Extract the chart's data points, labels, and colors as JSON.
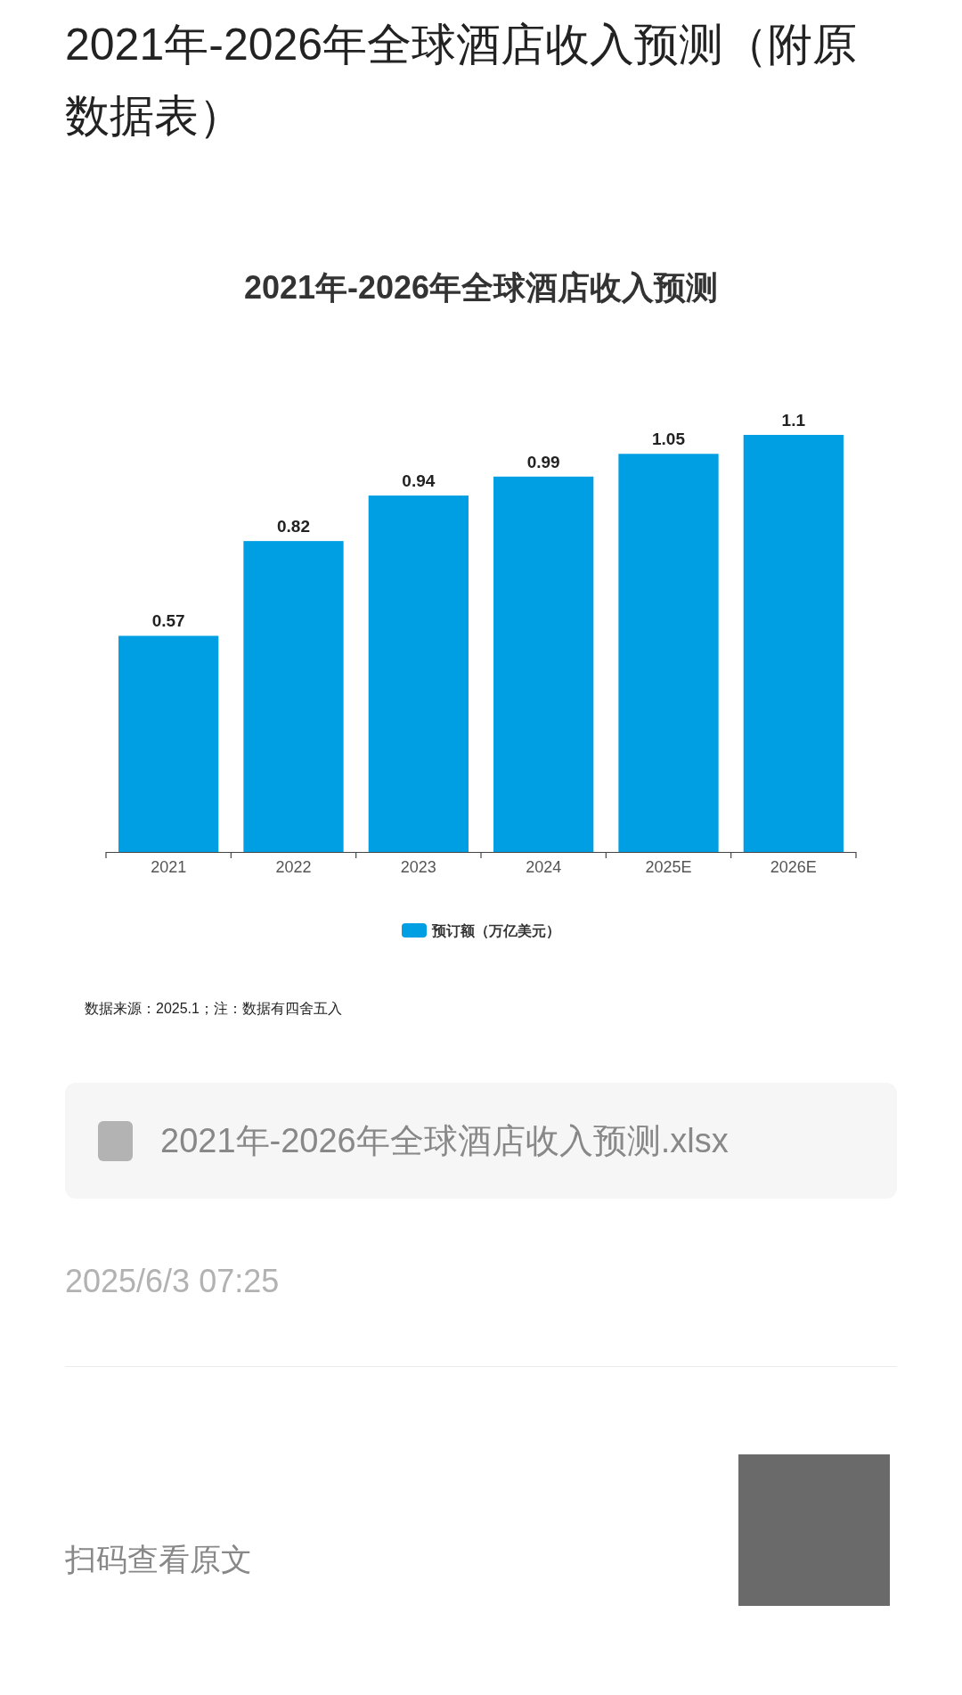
{
  "chart_data": {
    "type": "bar",
    "title": "2021年-2026年全球酒店收入预测（附原数据表）",
    "subtitle": "2021年-2026年全球酒店收入预测",
    "categories": [
      "2021",
      "2022",
      "2023",
      "2024",
      "2025E",
      "2026E"
    ],
    "series": [
      {
        "name": "预订额（万亿美元）",
        "color": "#009ee3",
        "values": [
          0.57,
          0.82,
          0.94,
          0.99,
          1.05,
          1.1
        ]
      }
    ],
    "data_labels": true,
    "legend": "bottom",
    "annotations": [
      "数据来源：2025.1；注：数据有四舍五入",
      "2021年-2026年全球酒店收入预测.xlsx",
      "2025/6/3 07:25",
      "扫码查看原文"
    ]
  }
}
